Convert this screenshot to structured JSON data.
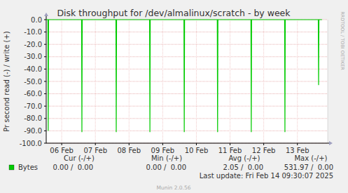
{
  "chart_data": {
    "type": "line",
    "title": "Disk throughput for /dev/almalinux/scratch - by week",
    "y_label": "Pr second read (-) / write (+)",
    "x": [
      6.04,
      6.09,
      6.1,
      6.11,
      7.09,
      7.1,
      7.11,
      8.11,
      8.12,
      8.13,
      9.11,
      9.12,
      9.13,
      10.13,
      10.14,
      10.15,
      11.12,
      11.13,
      11.14,
      12.12,
      12.13,
      12.14,
      13.12,
      13.13,
      13.14,
      14.12,
      14.13,
      14.14,
      14.23
    ],
    "series": [
      {
        "name": "Bytes",
        "color": "#00cc00",
        "values": [
          0,
          0,
          -90,
          0,
          0,
          -91,
          0,
          0,
          -91,
          0,
          0,
          -91,
          0,
          0,
          -91,
          0,
          0,
          -91,
          0,
          0,
          -91,
          0,
          0,
          -91,
          0,
          0,
          -53,
          0,
          0
        ]
      }
    ],
    "xlim": [
      6.04,
      14.4
    ],
    "xticks": [
      {
        "value": 6.5,
        "label": "06 Feb"
      },
      {
        "value": 7.5,
        "label": "07 Feb"
      },
      {
        "value": 8.5,
        "label": "08 Feb"
      },
      {
        "value": 9.5,
        "label": "09 Feb"
      },
      {
        "value": 10.5,
        "label": "10 Feb"
      },
      {
        "value": 11.5,
        "label": "11 Feb"
      },
      {
        "value": 12.5,
        "label": "12 Feb"
      },
      {
        "value": 13.5,
        "label": "13 Feb"
      }
    ],
    "ylim": [
      -100,
      0
    ],
    "yticks": [
      {
        "value": 0,
        "label": "0.0"
      },
      {
        "value": -10,
        "label": "-10.0"
      },
      {
        "value": -20,
        "label": "-20.0"
      },
      {
        "value": -30,
        "label": "-30.0"
      },
      {
        "value": -40,
        "label": "-40.0"
      },
      {
        "value": -50,
        "label": "-50.0"
      },
      {
        "value": -60,
        "label": "-60.0"
      },
      {
        "value": -70,
        "label": "-70.0"
      },
      {
        "value": -80,
        "label": "-80.0"
      },
      {
        "value": -90,
        "label": "-90.0"
      },
      {
        "value": -100,
        "label": "-100.0"
      }
    ],
    "grid": true,
    "legend": "bottom",
    "summary": {
      "columns": [
        "Cur (-/+)",
        "Min (-/+)",
        "Avg (-/+)",
        "Max (-/+)"
      ],
      "values": [
        "0.00 /  0.00",
        "0.00 /  0.00",
        "2.05 /  0.00",
        "531.97 /  0.00"
      ]
    },
    "last_update": "Last update: Fri Feb 14 09:30:07 2025",
    "footer": "Munin 2.0.56",
    "watermark": "RRDTOOL / TOBI OETIKER"
  }
}
